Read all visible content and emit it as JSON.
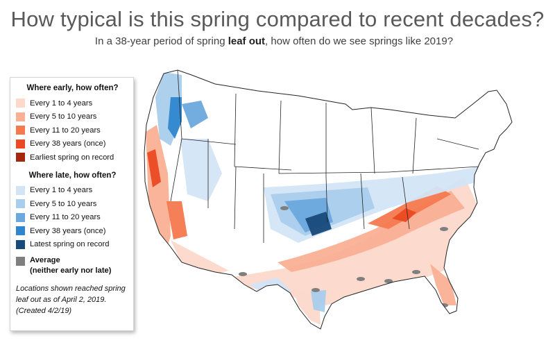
{
  "header": {
    "title": "How typical is this spring compared to recent decades?",
    "subtitle_pre": "In a 38-year period of spring ",
    "subtitle_bold": "leaf out",
    "subtitle_post": ", how often do we see springs like 2019?"
  },
  "legend": {
    "early_heading": "Where early, how often?",
    "early_items": [
      {
        "label": "Every 1 to 4 years",
        "color": "#fcd9cb"
      },
      {
        "label": "Every 5 to 10 years",
        "color": "#f9b094"
      },
      {
        "label": "Every 11 to 20 years",
        "color": "#f4794f"
      },
      {
        "label": "Every 38 years (once)",
        "color": "#eb4a22"
      },
      {
        "label": "Earliest spring on record",
        "color": "#a3290e"
      }
    ],
    "late_heading": "Where late, how often?",
    "late_items": [
      {
        "label": "Every 1 to 4 years",
        "color": "#d3e5f5"
      },
      {
        "label": "Every 5 to 10 years",
        "color": "#a9cdec"
      },
      {
        "label": "Every 11 to 20 years",
        "color": "#6ba8dd"
      },
      {
        "label": "Every 38 years (once)",
        "color": "#2f86cf"
      },
      {
        "label": "Latest spring on record",
        "color": "#17497a"
      }
    ],
    "average_line1": "Average",
    "average_line2": "(neither early nor late)",
    "average_color": "#7f7f7f",
    "note": "Locations shown reached spring leaf out as of April 2, 2019. (Created 4/2/19)"
  }
}
